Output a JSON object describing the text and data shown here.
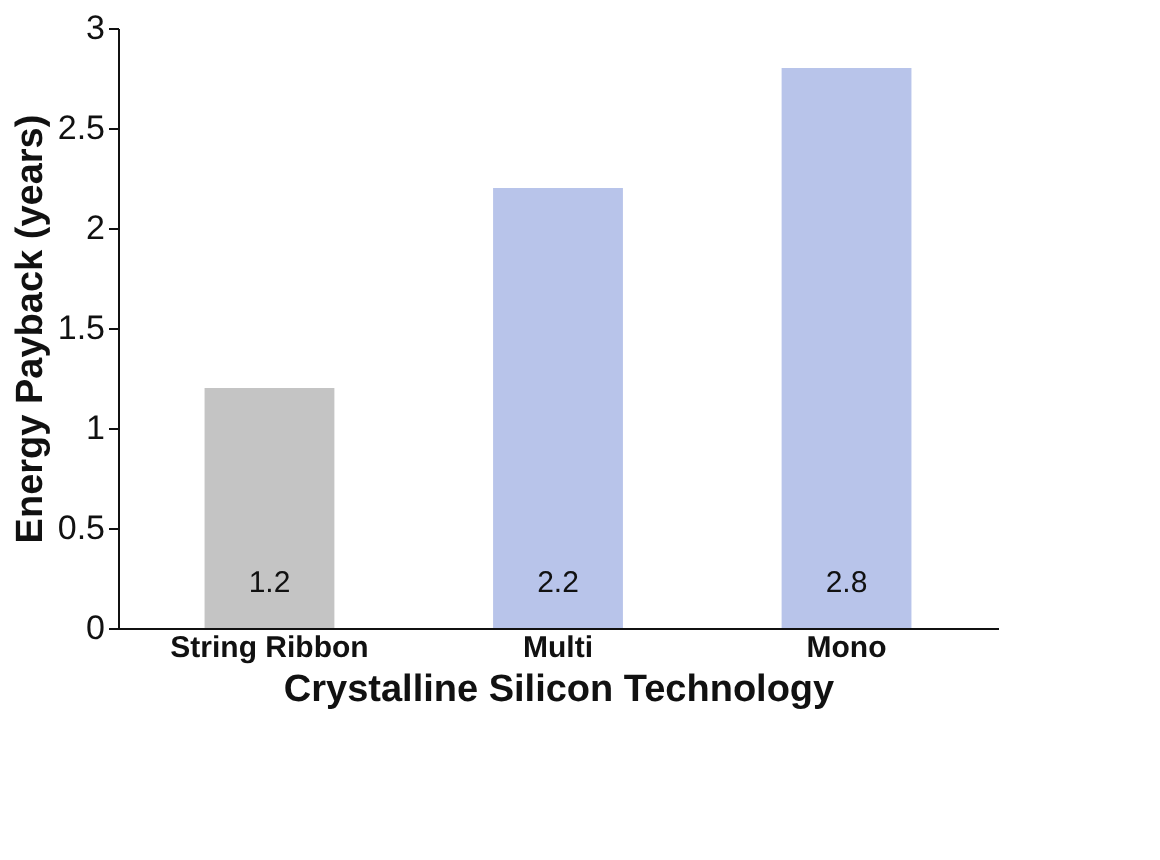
{
  "chart_data": {
    "type": "bar",
    "categories": [
      "String Ribbon",
      "Multi",
      "Mono"
    ],
    "values": [
      1.2,
      2.2,
      2.8
    ],
    "colors": [
      "#c4c4c4",
      "#b8c4ea",
      "#b8c4ea"
    ],
    "xlabel": "Crystalline Silicon Technology",
    "ylabel": "Energy Payback (years)",
    "ylim": [
      0,
      3
    ],
    "yticks": [
      0,
      0.5,
      1,
      1.5,
      2,
      2.5,
      3
    ],
    "grid": false,
    "data_labels": true
  }
}
